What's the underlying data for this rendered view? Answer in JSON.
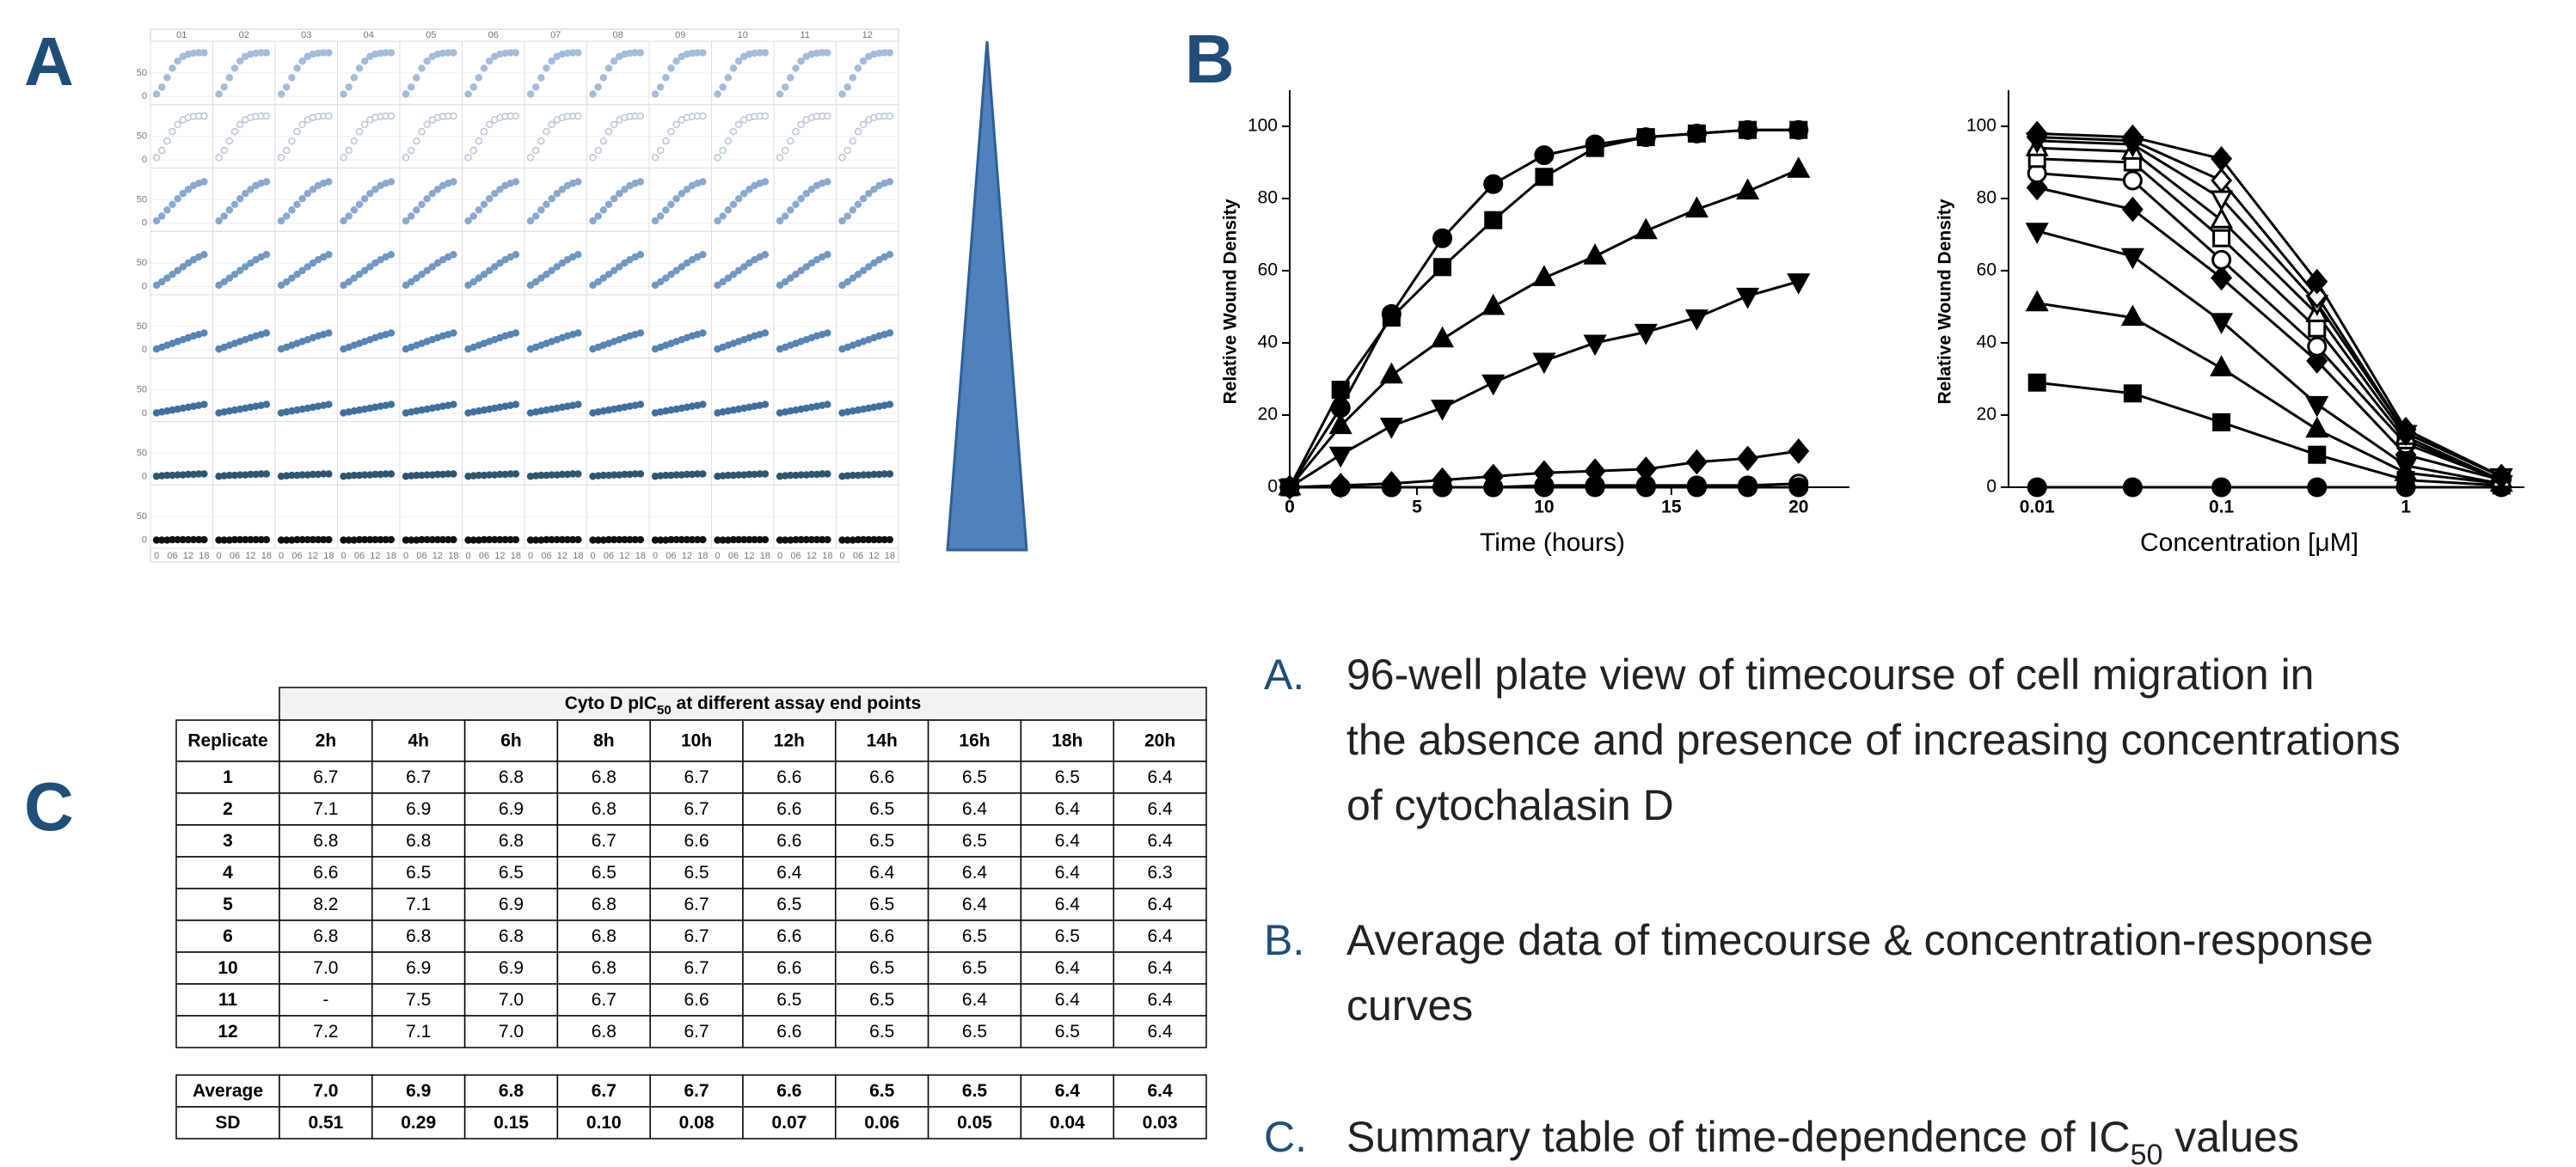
{
  "panel_labels": {
    "a": "A",
    "b": "B",
    "c": "C"
  },
  "plate": {
    "columns": [
      "01",
      "02",
      "03",
      "04",
      "05",
      "06",
      "07",
      "08",
      "09",
      "10",
      "11",
      "12"
    ],
    "x": [
      0,
      2,
      4,
      6,
      8,
      10,
      12,
      14,
      16,
      18
    ],
    "xlim": [
      -1,
      20
    ],
    "ylim": [
      -10,
      110
    ],
    "yticks": [
      0,
      50
    ],
    "xticks": [
      0,
      {
        "value": 6,
        "label": "06"
      },
      {
        "value": 12,
        "label": "12"
      },
      {
        "value": 18,
        "label": "18"
      }
    ],
    "rows": [
      {
        "color": "#a3bcdc",
        "open": false,
        "values": [
          5,
          20,
          40,
          60,
          75,
          85,
          90,
          92,
          93,
          93
        ]
      },
      {
        "color": "#b9c6d6",
        "open": true,
        "values": [
          5,
          20,
          40,
          60,
          75,
          85,
          90,
          92,
          93,
          93
        ]
      },
      {
        "color": "#89a9cf",
        "open": false,
        "values": [
          5,
          15,
          28,
          40,
          52,
          63,
          72,
          80,
          85,
          88
        ]
      },
      {
        "color": "#7098c4",
        "open": false,
        "values": [
          3,
          10,
          18,
          26,
          34,
          42,
          50,
          57,
          63,
          68
        ]
      },
      {
        "color": "#5684b5",
        "open": false,
        "values": [
          2,
          6,
          10,
          14,
          18,
          22,
          26,
          30,
          33,
          36
        ]
      },
      {
        "color": "#3f6f9e",
        "open": false,
        "values": [
          1,
          3,
          5,
          7,
          9,
          11,
          13,
          15,
          17,
          19
        ]
      },
      {
        "color": "#2e566e",
        "open": false,
        "values": [
          1,
          2,
          3,
          3,
          4,
          4,
          5,
          5,
          6,
          6
        ]
      },
      {
        "color": "#111111",
        "open": false,
        "values": [
          0,
          0,
          0,
          1,
          1,
          1,
          1,
          1,
          1,
          1
        ]
      }
    ]
  },
  "chart_data": [
    {
      "type": "line",
      "xlabel": "Time (hours)",
      "ylabel": "Relative Wound  Density",
      "color": "#000000",
      "xlim": [
        0,
        22
      ],
      "ylim": [
        0,
        110
      ],
      "xticks": [
        0,
        5,
        10,
        15,
        20
      ],
      "yticks": [
        0,
        20,
        40,
        60,
        80,
        100
      ],
      "x": [
        0,
        2,
        4,
        6,
        8,
        10,
        12,
        14,
        16,
        18,
        20
      ],
      "series": [
        {
          "marker": "square",
          "filled": true,
          "values": [
            0,
            27,
            47,
            61,
            74,
            86,
            94,
            97,
            98,
            99,
            99
          ]
        },
        {
          "marker": "circle",
          "filled": true,
          "values": [
            0,
            22,
            48,
            69,
            84,
            92,
            95,
            97,
            98,
            99,
            99
          ]
        },
        {
          "marker": "triangle-up",
          "filled": true,
          "values": [
            0,
            17,
            31,
            41,
            50,
            58,
            64,
            71,
            77,
            82,
            88
          ]
        },
        {
          "marker": "triangle-down",
          "filled": true,
          "values": [
            0,
            9,
            17,
            22,
            29,
            35,
            40,
            43,
            47,
            53,
            57
          ]
        },
        {
          "marker": "diamond",
          "filled": true,
          "values": [
            0,
            0.5,
            1,
            2,
            3,
            4,
            4.5,
            5,
            7,
            8,
            10
          ]
        },
        {
          "marker": "circle",
          "filled": false,
          "values": [
            0,
            0,
            0,
            0,
            0,
            0.5,
            0.5,
            0.5,
            0.5,
            0.5,
            1
          ]
        },
        {
          "marker": "circle",
          "filled": true,
          "values": [
            0,
            0,
            0,
            0,
            0,
            0,
            0,
            0,
            0,
            0,
            0
          ]
        }
      ]
    },
    {
      "type": "line",
      "xlabel": "Concentration [μM]",
      "ylabel": "Relative Wound  Density",
      "color": "#000000",
      "xscale": "log",
      "xlim": [
        0.007,
        4.4
      ],
      "ylim": [
        0,
        110
      ],
      "xticks": [
        0.01,
        0.1,
        1
      ],
      "yticks": [
        0,
        20,
        40,
        60,
        80,
        100
      ],
      "x": [
        0.01,
        0.033,
        0.1,
        0.33,
        1,
        3.3
      ],
      "series": [
        {
          "marker": "circle",
          "filled": true,
          "values": [
            0,
            0,
            0,
            0,
            0,
            0
          ]
        },
        {
          "marker": "square",
          "filled": true,
          "values": [
            29,
            26,
            18,
            9,
            2,
            0.5
          ]
        },
        {
          "marker": "triangle-up",
          "filled": true,
          "values": [
            51,
            47,
            33,
            16,
            4,
            1
          ]
        },
        {
          "marker": "triangle-down",
          "filled": true,
          "values": [
            71,
            64,
            46,
            23,
            6,
            1
          ]
        },
        {
          "marker": "diamond",
          "filled": true,
          "values": [
            83,
            77,
            58,
            35,
            9,
            2
          ]
        },
        {
          "marker": "circle",
          "filled": false,
          "values": [
            87,
            85,
            63,
            39,
            12,
            2
          ]
        },
        {
          "marker": "square",
          "filled": false,
          "values": [
            91,
            90,
            69,
            44,
            13,
            2
          ]
        },
        {
          "marker": "triangle-up",
          "filled": false,
          "values": [
            94,
            93,
            74,
            48,
            14,
            2
          ]
        },
        {
          "marker": "triangle-down",
          "filled": false,
          "values": [
            96,
            95,
            80,
            51,
            15,
            3
          ]
        },
        {
          "marker": "diamond",
          "filled": false,
          "values": [
            97,
            96,
            85,
            53,
            15,
            3
          ]
        },
        {
          "marker": "diamond",
          "filled": true,
          "values": [
            98,
            97,
            91,
            57,
            16,
            3
          ]
        }
      ]
    }
  ],
  "table": {
    "title_parts": [
      "Cyto D pIC",
      "50",
      " at different assay end points"
    ],
    "header": [
      "Replicate",
      "2h",
      "4h",
      "6h",
      "8h",
      "10h",
      "12h",
      "14h",
      "16h",
      "18h",
      "20h"
    ],
    "rows": [
      [
        "1",
        "6.7",
        "6.7",
        "6.8",
        "6.8",
        "6.7",
        "6.6",
        "6.6",
        "6.5",
        "6.5",
        "6.4"
      ],
      [
        "2",
        "7.1",
        "6.9",
        "6.9",
        "6.8",
        "6.7",
        "6.6",
        "6.5",
        "6.4",
        "6.4",
        "6.4"
      ],
      [
        "3",
        "6.8",
        "6.8",
        "6.8",
        "6.7",
        "6.6",
        "6.6",
        "6.5",
        "6.5",
        "6.4",
        "6.4"
      ],
      [
        "4",
        "6.6",
        "6.5",
        "6.5",
        "6.5",
        "6.5",
        "6.4",
        "6.4",
        "6.4",
        "6.4",
        "6.3"
      ],
      [
        "5",
        "8.2",
        "7.1",
        "6.9",
        "6.8",
        "6.7",
        "6.5",
        "6.5",
        "6.4",
        "6.4",
        "6.4"
      ],
      [
        "6",
        "6.8",
        "6.8",
        "6.8",
        "6.8",
        "6.7",
        "6.6",
        "6.6",
        "6.5",
        "6.5",
        "6.4"
      ],
      [
        "10",
        "7.0",
        "6.9",
        "6.9",
        "6.8",
        "6.7",
        "6.6",
        "6.5",
        "6.5",
        "6.4",
        "6.4"
      ],
      [
        "11",
        "-",
        "7.5",
        "7.0",
        "6.7",
        "6.6",
        "6.5",
        "6.5",
        "6.4",
        "6.4",
        "6.4"
      ],
      [
        "12",
        "7.2",
        "7.1",
        "7.0",
        "6.8",
        "6.7",
        "6.6",
        "6.5",
        "6.5",
        "6.5",
        "6.4"
      ]
    ],
    "summary": [
      [
        "Average",
        "7.0",
        "6.9",
        "6.8",
        "6.7",
        "6.7",
        "6.6",
        "6.5",
        "6.5",
        "6.4",
        "6.4"
      ],
      [
        "SD",
        "0.51",
        "0.29",
        "0.15",
        "0.10",
        "0.08",
        "0.07",
        "0.06",
        "0.05",
        "0.04",
        "0.03"
      ]
    ]
  },
  "legend": [
    {
      "marker": "A.",
      "lines": [
        "96-well plate view of timecourse of cell migration in",
        "the absence and presence of increasing concentrations",
        "of cytochalasin D"
      ]
    },
    {
      "marker": "B.",
      "lines": [
        "Average data of timecourse & concentration-response",
        "curves"
      ]
    },
    {
      "marker": "C.",
      "lines": [
        "Summary table of time-dependence of IC"
      ],
      "subscript": "50",
      "suffix": " values"
    }
  ]
}
